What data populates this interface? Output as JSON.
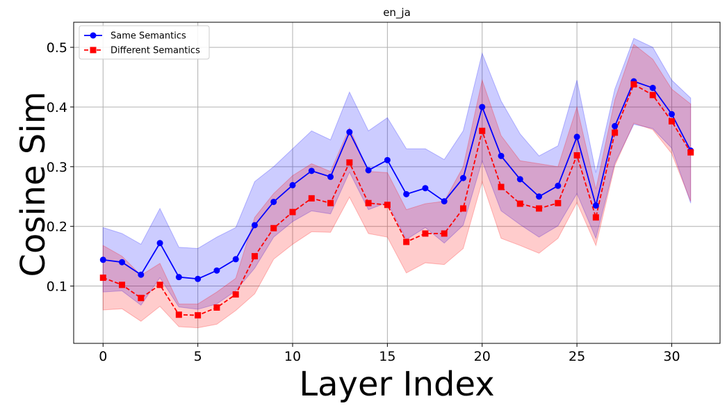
{
  "chart_data": {
    "type": "line",
    "title": "en_ja",
    "xlabel": "Layer Index",
    "ylabel": "Cosine Sim",
    "xlim": [
      -1.55,
      32.55
    ],
    "ylim": [
      0.004,
      0.542
    ],
    "xticks": [
      0,
      5,
      10,
      15,
      20,
      25,
      30
    ],
    "yticks": [
      0.1,
      0.2,
      0.3,
      0.4,
      0.5
    ],
    "ytick_labels": [
      "0.1",
      "0.2",
      "0.3",
      "0.4",
      "0.5"
    ],
    "grid": true,
    "legend_position": "top-left",
    "x": [
      0,
      1,
      2,
      3,
      4,
      5,
      6,
      7,
      8,
      9,
      10,
      11,
      12,
      13,
      14,
      15,
      16,
      17,
      18,
      19,
      20,
      21,
      22,
      23,
      24,
      25,
      26,
      27,
      28,
      29,
      30,
      31
    ],
    "series": [
      {
        "name": "Same Semantics",
        "color": "#0000ff",
        "marker": "circle",
        "linestyle": "solid",
        "values": [
          0.144,
          0.14,
          0.119,
          0.172,
          0.115,
          0.112,
          0.126,
          0.145,
          0.202,
          0.241,
          0.269,
          0.293,
          0.283,
          0.358,
          0.294,
          0.311,
          0.254,
          0.264,
          0.242,
          0.281,
          0.4,
          0.318,
          0.279,
          0.25,
          0.268,
          0.35,
          0.235,
          0.368,
          0.443,
          0.432,
          0.388,
          0.327
        ],
        "band_upper": [
          0.198,
          0.188,
          0.17,
          0.23,
          0.165,
          0.163,
          0.182,
          0.198,
          0.275,
          0.3,
          0.33,
          0.36,
          0.345,
          0.425,
          0.36,
          0.382,
          0.33,
          0.33,
          0.312,
          0.36,
          0.49,
          0.41,
          0.355,
          0.318,
          0.335,
          0.445,
          0.29,
          0.43,
          0.515,
          0.5,
          0.445,
          0.415
        ],
        "band_lower": [
          0.09,
          0.092,
          0.068,
          0.114,
          0.065,
          0.061,
          0.07,
          0.092,
          0.13,
          0.182,
          0.208,
          0.226,
          0.221,
          0.291,
          0.228,
          0.24,
          0.178,
          0.198,
          0.172,
          0.202,
          0.31,
          0.226,
          0.203,
          0.182,
          0.201,
          0.255,
          0.18,
          0.306,
          0.371,
          0.364,
          0.331,
          0.239
        ]
      },
      {
        "name": "Different Semantics",
        "color": "#ff0000",
        "marker": "square",
        "linestyle": "dashed",
        "values": [
          0.114,
          0.102,
          0.08,
          0.102,
          0.052,
          0.051,
          0.064,
          0.086,
          0.15,
          0.197,
          0.224,
          0.247,
          0.239,
          0.307,
          0.239,
          0.236,
          0.174,
          0.188,
          0.188,
          0.23,
          0.36,
          0.266,
          0.238,
          0.23,
          0.239,
          0.319,
          0.215,
          0.357,
          0.438,
          0.42,
          0.376,
          0.324
        ],
        "band_upper": [
          0.168,
          0.15,
          0.118,
          0.138,
          0.07,
          0.07,
          0.09,
          0.113,
          0.215,
          0.255,
          0.285,
          0.305,
          0.292,
          0.365,
          0.292,
          0.29,
          0.228,
          0.238,
          0.242,
          0.3,
          0.445,
          0.352,
          0.31,
          0.305,
          0.3,
          0.4,
          0.262,
          0.412,
          0.505,
          0.48,
          0.43,
          0.405
        ],
        "band_lower": [
          0.06,
          0.062,
          0.041,
          0.066,
          0.032,
          0.03,
          0.036,
          0.059,
          0.087,
          0.145,
          0.17,
          0.191,
          0.19,
          0.249,
          0.188,
          0.182,
          0.122,
          0.139,
          0.136,
          0.163,
          0.275,
          0.18,
          0.168,
          0.155,
          0.18,
          0.24,
          0.168,
          0.302,
          0.373,
          0.362,
          0.322,
          0.242
        ]
      }
    ]
  }
}
